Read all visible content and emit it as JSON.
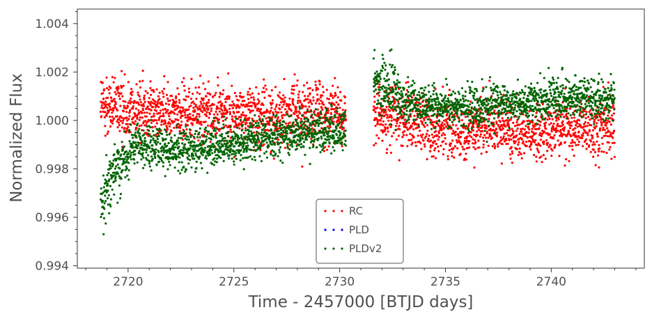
{
  "chart_data": {
    "type": "scatter",
    "title": "",
    "xlabel": "Time - 2457000 [BTJD days]",
    "ylabel": "Normalized Flux",
    "xlim": [
      2717.6,
      2744.4
    ],
    "ylim": [
      0.9939,
      1.0046
    ],
    "x_ticks": [
      2720,
      2725,
      2730,
      2735,
      2740
    ],
    "x_tick_labels": [
      "2720",
      "2725",
      "2730",
      "2735",
      "2740"
    ],
    "y_ticks": [
      0.994,
      0.996,
      0.998,
      1.0,
      1.002,
      1.004
    ],
    "y_tick_labels": [
      "0.994",
      "0.996",
      "0.998",
      "1.000",
      "1.002",
      "1.004"
    ],
    "grid": false,
    "legend_position": "bottom-center",
    "gaps": [
      [
        2730.3,
        2731.6
      ]
    ],
    "series": [
      {
        "name": "RC",
        "color": "#ff0000",
        "segments": [
          {
            "x": [
              2718.7,
              2722.5,
              2726.5,
              2730.3
            ],
            "y": [
              1.0006,
              1.0003,
              1.0002,
              1.0003
            ]
          },
          {
            "x": [
              2731.6,
              2735.0,
              2739.0,
              2743.0
            ],
            "y": [
              1.0003,
              0.9997,
              0.9996,
              0.9998
            ]
          }
        ]
      },
      {
        "name": "PLD",
        "color": "#0000ff",
        "segments": []
      },
      {
        "name": "PLDv2",
        "color": "#006400",
        "segments": [
          {
            "x": [
              2718.7,
              2719.5,
              2720.5,
              2722.0,
              2724.0,
              2726.5,
              2728.5,
              2730.3
            ],
            "y": [
              0.9966,
              0.9982,
              0.999,
              0.9988,
              0.9989,
              0.9993,
              0.9996,
              0.9996
            ]
          },
          {
            "x": [
              2731.6,
              2733.5,
              2736.0,
              2740.0,
              2743.0
            ],
            "y": [
              1.0017,
              1.0006,
              1.0005,
              1.0009,
              1.0009
            ]
          }
        ]
      }
    ]
  }
}
